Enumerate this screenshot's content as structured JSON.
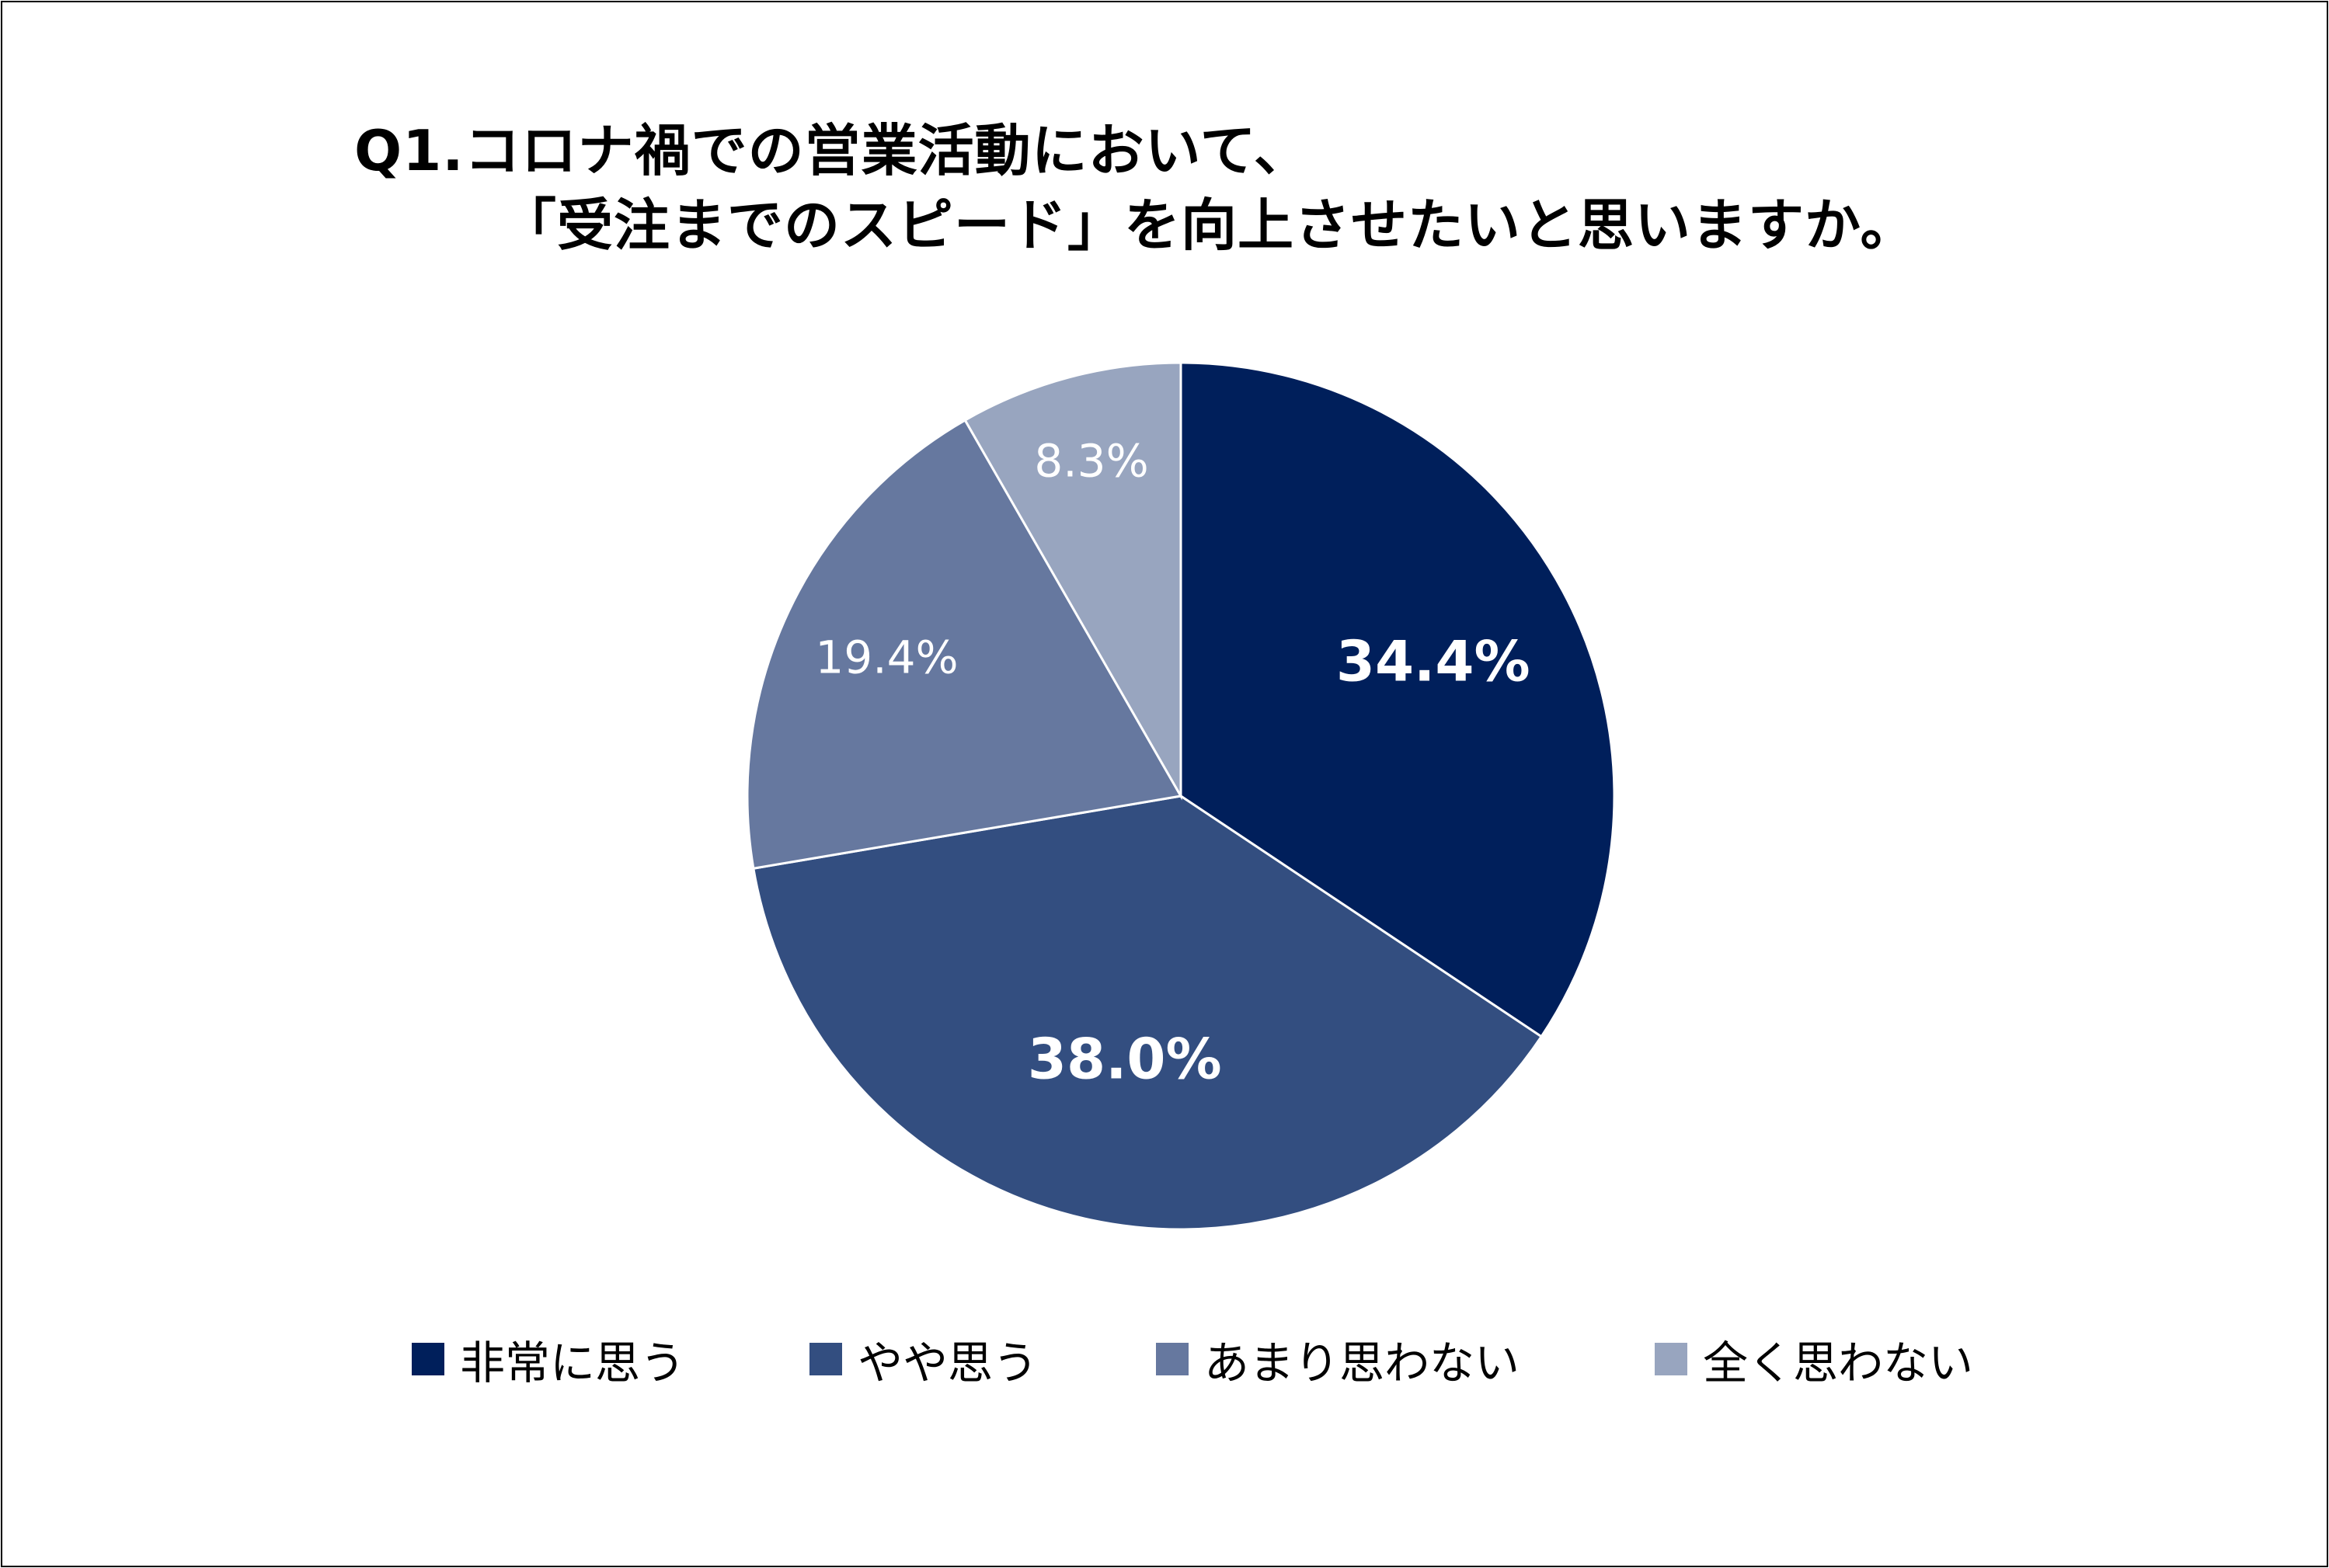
{
  "chart_data": {
    "type": "pie",
    "title_lines": [
      "Q1.コロナ禍での営業活動において、",
      "「受注までのスピード」を向上させたいと思いますか。"
    ],
    "slices": [
      {
        "label": "非常に思う",
        "value": 34.4,
        "display": "34.4%",
        "color": "#001f5b",
        "label_style": "bold"
      },
      {
        "label": "やや思う",
        "value": 38.0,
        "display": "38.0%",
        "color": "#334e80",
        "label_style": "bold"
      },
      {
        "label": "あまり思わない",
        "value": 19.4,
        "display": "19.4%",
        "color": "#66789f",
        "label_style": "normal"
      },
      {
        "label": "全く思わない",
        "value": 8.3,
        "display": "8.3%",
        "color": "#98a5bf",
        "label_style": "normal"
      }
    ],
    "legend_position": "bottom",
    "start_angle": "top, clockwise"
  }
}
